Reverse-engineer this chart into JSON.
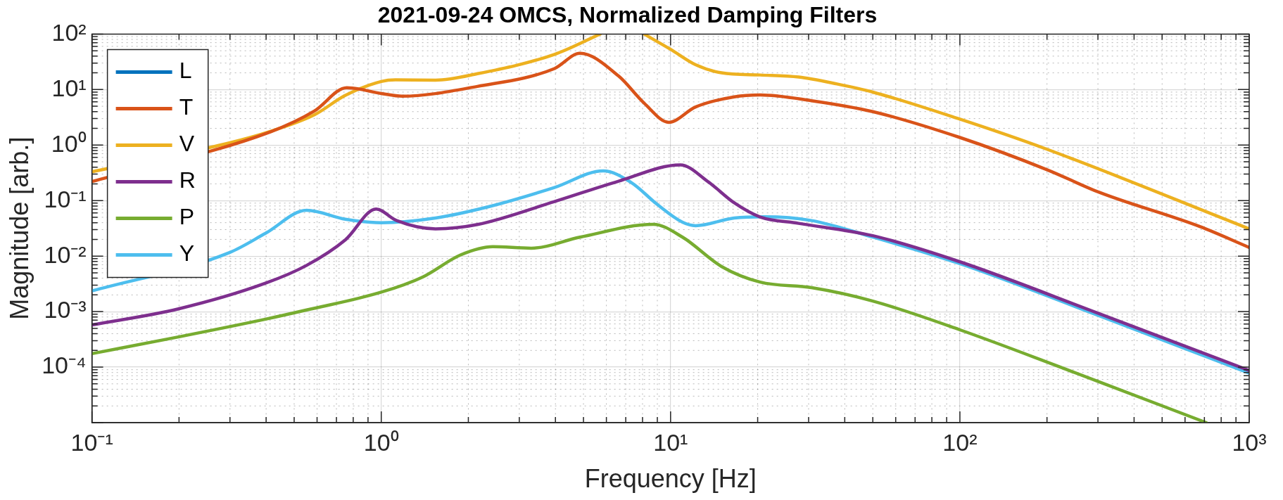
{
  "chart_data": {
    "type": "line",
    "title": "2021-09-24 OMCS, Normalized Damping Filters",
    "xlabel": "Frequency [Hz]",
    "ylabel": "Magnitude [arb.]",
    "log": "xy",
    "grid": true,
    "legend": "top left",
    "line_style": "solid",
    "marker": "none",
    "xlim": [
      0.1,
      1000
    ],
    "xticks": [
      {
        "value": 0.1,
        "label": "10⁻¹"
      },
      {
        "value": 1,
        "label": "10⁰"
      },
      {
        "value": 10,
        "label": "10¹"
      },
      {
        "value": 100,
        "label": "10²"
      },
      {
        "value": 1000,
        "label": "10³"
      }
    ],
    "ylim": [
      1e-05,
      100
    ],
    "yticks": [
      {
        "value": 1e-05,
        "label": null
      },
      {
        "value": 0.0001,
        "label": "10⁻⁴"
      },
      {
        "value": 0.001,
        "label": "10⁻³"
      },
      {
        "value": 0.01,
        "label": "10⁻²"
      },
      {
        "value": 0.1,
        "label": "10⁻¹"
      },
      {
        "value": 1,
        "label": "10⁰"
      },
      {
        "value": 10,
        "label": "10¹"
      },
      {
        "value": 100,
        "label": "10²"
      }
    ],
    "series": [
      {
        "name": "L",
        "color": "#0072bd"
      },
      {
        "name": "T",
        "color": "#d95319",
        "x": [
          0.1,
          0.415,
          0.587,
          0.76,
          1.0,
          1.18,
          2.15,
          3.97,
          4.86,
          6.62,
          8.1,
          9.86,
          12.2,
          16.6,
          20.4,
          30.7,
          50,
          100,
          200,
          304,
          675,
          1000
        ],
        "values": [
          0.22,
          1.74,
          4.1,
          10.8,
          8.5,
          7.6,
          11.4,
          23.9,
          45,
          17.4,
          5.7,
          2.57,
          4.86,
          7.4,
          8.0,
          6.3,
          4.0,
          1.37,
          0.36,
          0.14,
          0.034,
          0.0143
        ]
      },
      {
        "name": "V",
        "color": "#edb120",
        "x": [
          0.1,
          0.3,
          0.415,
          0.587,
          0.75,
          1.0,
          1.12,
          1.54,
          2.15,
          3.97,
          5.71,
          7,
          8.1,
          10,
          12.2,
          15,
          20.4,
          27.7,
          37.6,
          50,
          100,
          200,
          1000
        ],
        "values": [
          0.33,
          1.1,
          1.77,
          3.5,
          7.8,
          14,
          15,
          14.8,
          19.3,
          43,
          100,
          null,
          100,
          53,
          28,
          20,
          18.3,
          16.8,
          12.6,
          9.0,
          2.93,
          0.84,
          0.031
        ]
      },
      {
        "name": "R",
        "color": "#7e2f8e",
        "x": [
          0.1,
          0.199,
          0.398,
          0.552,
          0.752,
          0.96,
          1.13,
          1.54,
          2.15,
          3.97,
          6.62,
          10.8,
          13.5,
          16.6,
          20.4,
          27.7,
          50,
          100,
          298,
          1000
        ],
        "values": [
          0.000575,
          0.00112,
          0.00325,
          0.0068,
          0.0197,
          0.0705,
          0.0437,
          0.031,
          0.037,
          0.096,
          0.224,
          0.44,
          0.217,
          0.091,
          0.0507,
          0.0389,
          0.0233,
          0.0079,
          0.00095,
          8.7e-05
        ]
      },
      {
        "name": "P",
        "color": "#77ac30",
        "x": [
          0.1,
          0.199,
          0.398,
          0.552,
          1.0,
          1.39,
          1.88,
          2.43,
          3.3,
          4.86,
          8.72,
          11.0,
          15,
          20.4,
          30.7,
          50,
          100,
          298,
          711
        ],
        "values": [
          0.000175,
          0.00035,
          0.00073,
          0.00107,
          0.00224,
          0.0042,
          0.0105,
          0.0148,
          0.0139,
          0.0219,
          0.0373,
          0.0219,
          0.0065,
          0.0034,
          0.0027,
          0.00155,
          0.00047,
          5.6e-05,
          1e-05
        ]
      },
      {
        "name": "Y",
        "color": "#4dbeee",
        "x": [
          0.1,
          0.299,
          0.398,
          0.552,
          0.752,
          1.0,
          1.54,
          2.36,
          3.97,
          5.85,
          7.33,
          9.0,
          11.0,
          12.2,
          16.6,
          21.2,
          30.7,
          50,
          100,
          298,
          1000
        ],
        "values": [
          0.00236,
          0.0116,
          0.0257,
          0.0668,
          0.0461,
          0.04,
          0.0486,
          0.078,
          0.172,
          0.343,
          0.21,
          0.085,
          0.0407,
          0.0353,
          0.0486,
          0.0512,
          0.0437,
          0.022,
          0.0073,
          0.00087,
          7.8e-05
        ]
      }
    ]
  }
}
